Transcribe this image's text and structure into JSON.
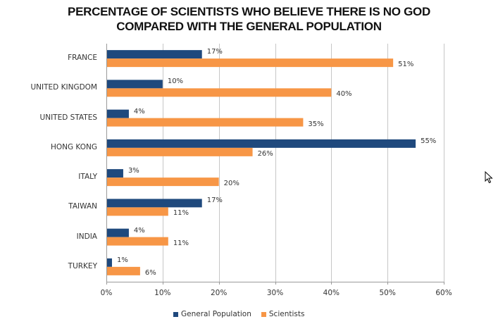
{
  "chart_data": {
    "type": "bar",
    "orientation": "horizontal",
    "title": "PERCENTAGE OF SCIENTISTS WHO BELIEVE THERE IS NO GOD",
    "subtitle": "COMPARED WITH THE GENERAL POPULATION",
    "categories": [
      "FRANCE",
      "UNITED KINGDOM",
      "UNITED STATES",
      "HONG KONG",
      "ITALY",
      "TAIWAN",
      "INDIA",
      "TURKEY"
    ],
    "series": [
      {
        "name": "General Population",
        "color": "#1F497D",
        "values": [
          17,
          10,
          4,
          55,
          3,
          17,
          4,
          1
        ],
        "labels": [
          "17%",
          "10%",
          "4%",
          "55%",
          "3%",
          "17%",
          "4%",
          "1%"
        ]
      },
      {
        "name": "Scientists",
        "color": "#F79646",
        "values": [
          51,
          40,
          35,
          26,
          20,
          11,
          11,
          6
        ],
        "labels": [
          "51%",
          "40%",
          "35%",
          "26%",
          "20%",
          "11%",
          "11%",
          "6%"
        ]
      }
    ],
    "xlim": [
      0,
      60
    ],
    "xticks": [
      0,
      10,
      20,
      30,
      40,
      50,
      60
    ],
    "xtick_labels": [
      "0%",
      "10%",
      "20%",
      "30%",
      "40%",
      "50%",
      "60%"
    ],
    "grid": true,
    "legend_position": "bottom"
  }
}
